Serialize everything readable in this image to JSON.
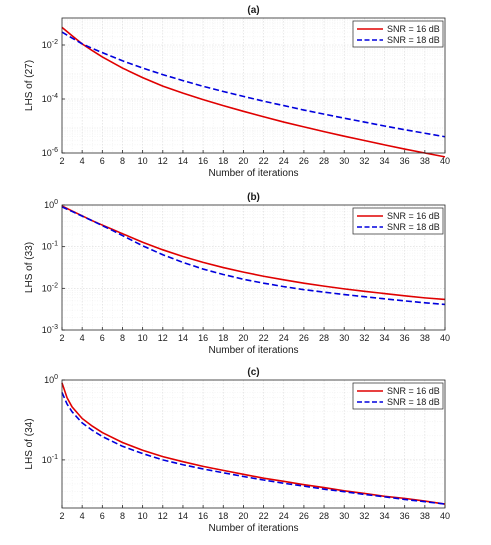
{
  "chart_data": [
    {
      "type": "line",
      "title": "(a)",
      "xlabel": "Number of iterations",
      "ylabel": "LHS of (27)",
      "yscale": "log",
      "xlim": [
        2,
        40
      ],
      "ylim": [
        1e-06,
        0.1
      ],
      "xticks": [
        2,
        4,
        6,
        8,
        10,
        12,
        14,
        16,
        18,
        20,
        22,
        24,
        26,
        28,
        30,
        32,
        34,
        36,
        38,
        40
      ],
      "yticks": [
        {
          "base": "10",
          "exp": "-6",
          "value": 1e-06
        },
        {
          "base": "10",
          "exp": "-4",
          "value": 0.0001
        },
        {
          "base": "10",
          "exp": "-2",
          "value": 0.01
        }
      ],
      "grid": true,
      "legend_position": "top-right",
      "series": [
        {
          "name": "SNR = 16 dB",
          "color": "#e00000",
          "dash": "solid",
          "x": [
            2,
            3,
            4,
            5,
            6,
            8,
            10,
            12,
            14,
            16,
            18,
            20,
            22,
            24,
            26,
            28,
            30,
            32,
            34,
            36,
            38,
            40
          ],
          "y": [
            0.045,
            0.022,
            0.011,
            0.0062,
            0.0036,
            0.0014,
            0.00062,
            0.0003,
            0.000165,
            9.5e-05,
            5.7e-05,
            3.5e-05,
            2.2e-05,
            1.4e-05,
            9.3e-06,
            6.2e-06,
            4.2e-06,
            2.9e-06,
            2e-06,
            1.4e-06,
            1e-06,
            7.2e-07
          ]
        },
        {
          "name": "SNR = 18 dB",
          "color": "#0000dd",
          "dash": "dashed",
          "x": [
            2,
            3,
            4,
            5,
            6,
            8,
            10,
            12,
            14,
            16,
            18,
            20,
            22,
            24,
            26,
            28,
            30,
            32,
            34,
            36,
            38,
            40
          ],
          "y": [
            0.03,
            0.018,
            0.011,
            0.0075,
            0.0052,
            0.0026,
            0.0014,
            0.0008,
            0.00048,
            0.000295,
            0.00019,
            0.000125,
            8.3e-05,
            5.7e-05,
            3.9e-05,
            2.75e-05,
            1.95e-05,
            1.4e-05,
            1e-05,
            7.3e-06,
            5.4e-06,
            4e-06
          ]
        }
      ]
    },
    {
      "type": "line",
      "title": "(b)",
      "xlabel": "Number of iterations",
      "ylabel": "LHS of (33)",
      "yscale": "log",
      "xlim": [
        2,
        40
      ],
      "ylim": [
        0.001,
        1
      ],
      "xticks": [
        2,
        4,
        6,
        8,
        10,
        12,
        14,
        16,
        18,
        20,
        22,
        24,
        26,
        28,
        30,
        32,
        34,
        36,
        38,
        40
      ],
      "yticks": [
        {
          "base": "10",
          "exp": "-3",
          "value": 0.001
        },
        {
          "base": "10",
          "exp": "-2",
          "value": 0.01
        },
        {
          "base": "10",
          "exp": "-1",
          "value": 0.1
        },
        {
          "base": "10",
          "exp": "0",
          "value": 1
        }
      ],
      "grid": true,
      "legend_position": "top-right",
      "series": [
        {
          "name": "SNR = 16 dB",
          "color": "#e00000",
          "dash": "solid",
          "x": [
            2,
            3,
            4,
            5,
            6,
            7,
            8,
            10,
            12,
            14,
            16,
            18,
            20,
            22,
            24,
            26,
            28,
            30,
            32,
            34,
            36,
            38,
            40
          ],
          "y": [
            0.95,
            0.72,
            0.55,
            0.42,
            0.33,
            0.26,
            0.205,
            0.128,
            0.084,
            0.058,
            0.042,
            0.0315,
            0.0245,
            0.0195,
            0.016,
            0.0133,
            0.0113,
            0.0097,
            0.0085,
            0.0075,
            0.0066,
            0.0059,
            0.0054
          ]
        },
        {
          "name": "SNR = 18 dB",
          "color": "#0000dd",
          "dash": "dashed",
          "x": [
            2,
            3,
            4,
            5,
            6,
            7,
            8,
            10,
            12,
            14,
            16,
            18,
            20,
            22,
            24,
            26,
            28,
            30,
            32,
            34,
            36,
            38,
            40
          ],
          "y": [
            0.9,
            0.7,
            0.54,
            0.42,
            0.32,
            0.245,
            0.185,
            0.105,
            0.064,
            0.042,
            0.029,
            0.0215,
            0.0165,
            0.0133,
            0.011,
            0.0093,
            0.0081,
            0.0071,
            0.0063,
            0.0056,
            0.005,
            0.0045,
            0.0041
          ]
        }
      ]
    },
    {
      "type": "line",
      "title": "(c)",
      "xlabel": "Number of iterations",
      "ylabel": "LHS of (34)",
      "yscale": "log",
      "xlim": [
        2,
        40
      ],
      "ylim": [
        0.025,
        1
      ],
      "xticks": [
        2,
        4,
        6,
        8,
        10,
        12,
        14,
        16,
        18,
        20,
        22,
        24,
        26,
        28,
        30,
        32,
        34,
        36,
        38,
        40
      ],
      "yticks": [
        {
          "base": "10",
          "exp": "-1",
          "value": 0.1
        },
        {
          "base": "10",
          "exp": "0",
          "value": 1
        }
      ],
      "grid": true,
      "legend_position": "top-right",
      "series": [
        {
          "name": "SNR = 16 dB",
          "color": "#e00000",
          "dash": "solid",
          "x": [
            2,
            2.5,
            3,
            4,
            5,
            6,
            8,
            10,
            12,
            14,
            16,
            18,
            20,
            22,
            24,
            26,
            28,
            30,
            32,
            34,
            36,
            38,
            40
          ],
          "y": [
            0.92,
            0.6,
            0.46,
            0.33,
            0.265,
            0.22,
            0.165,
            0.132,
            0.11,
            0.095,
            0.083,
            0.074,
            0.066,
            0.059,
            0.054,
            0.049,
            0.045,
            0.041,
            0.038,
            0.035,
            0.033,
            0.0305,
            0.028
          ]
        },
        {
          "name": "SNR = 18 dB",
          "color": "#0000dd",
          "dash": "dashed",
          "x": [
            2,
            2.5,
            3,
            4,
            5,
            6,
            8,
            10,
            12,
            14,
            16,
            18,
            20,
            22,
            24,
            26,
            28,
            30,
            32,
            34,
            36,
            38,
            40
          ],
          "y": [
            0.7,
            0.5,
            0.4,
            0.29,
            0.235,
            0.196,
            0.148,
            0.12,
            0.1,
            0.087,
            0.077,
            0.069,
            0.062,
            0.056,
            0.051,
            0.047,
            0.043,
            0.04,
            0.037,
            0.0345,
            0.032,
            0.03,
            0.028
          ]
        }
      ]
    }
  ]
}
